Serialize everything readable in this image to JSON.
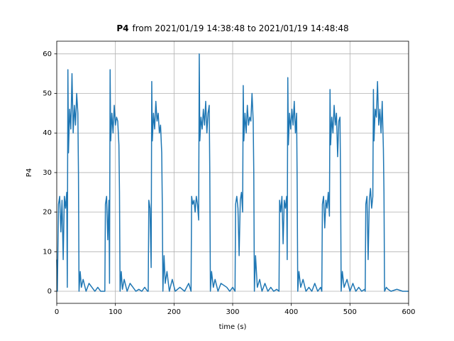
{
  "chart_data": {
    "type": "line",
    "title": [
      "P4",
      "from 2021/01/19 14:38:48 to 2021/01/19 14:48:48"
    ],
    "x_label": "time (s)",
    "y_label": "P4",
    "color": "#1f77b4",
    "grid": true,
    "xlim": [
      0,
      600
    ],
    "xticks": [
      0,
      100,
      200,
      300,
      400,
      500,
      600
    ],
    "ylim": [
      -3.05,
      63.2
    ],
    "yticks": [
      0,
      10,
      20,
      30,
      40,
      50,
      60
    ],
    "x": [
      0,
      1,
      3,
      5,
      7,
      9,
      11,
      13,
      15,
      17,
      18,
      19,
      20,
      22,
      24,
      26,
      28,
      30,
      32,
      34,
      36,
      37,
      38,
      40,
      42,
      45,
      50,
      55,
      60,
      65,
      70,
      75,
      80,
      82,
      83,
      85,
      87,
      89,
      90,
      91,
      92,
      94,
      96,
      98,
      100,
      102,
      104,
      106,
      107,
      108,
      110,
      112,
      115,
      120,
      125,
      130,
      135,
      140,
      145,
      150,
      155,
      156,
      157,
      159,
      161,
      162,
      163,
      165,
      167,
      169,
      171,
      173,
      175,
      177,
      179,
      180,
      181,
      183,
      185,
      188,
      192,
      197,
      202,
      210,
      218,
      225,
      229,
      230,
      232,
      234,
      236,
      238,
      240,
      242,
      243,
      244,
      246,
      248,
      250,
      252,
      254,
      256,
      258,
      260,
      261,
      262,
      264,
      267,
      270,
      275,
      280,
      290,
      295,
      300,
      304,
      305,
      307,
      309,
      311,
      313,
      315,
      317,
      318,
      319,
      321,
      323,
      325,
      327,
      329,
      331,
      333,
      335,
      336,
      337,
      339,
      342,
      346,
      350,
      355,
      360,
      365,
      370,
      375,
      379,
      380,
      382,
      384,
      386,
      388,
      390,
      392,
      393,
      394,
      395,
      397,
      399,
      401,
      403,
      405,
      407,
      409,
      410,
      411,
      413,
      416,
      420,
      425,
      430,
      435,
      440,
      445,
      450,
      452,
      453,
      455,
      457,
      459,
      461,
      463,
      465,
      466,
      467,
      469,
      471,
      473,
      475,
      477,
      479,
      481,
      483,
      484,
      485,
      487,
      490,
      495,
      500,
      505,
      510,
      515,
      520,
      525,
      526,
      527,
      529,
      531,
      533,
      535,
      537,
      539,
      540,
      541,
      543,
      545,
      547,
      549,
      551,
      553,
      555,
      557,
      558,
      559,
      562,
      565,
      570,
      580,
      590,
      600
    ],
    "values": [
      8,
      0,
      22,
      24,
      15,
      23,
      8,
      24,
      21,
      25,
      1,
      56,
      35,
      46,
      41,
      55,
      40,
      47,
      42,
      50,
      45,
      30,
      0,
      5,
      1,
      3,
      0,
      2,
      1,
      0,
      1,
      0,
      0,
      0,
      22,
      24,
      13,
      23,
      2,
      56,
      38,
      45,
      40,
      47,
      42,
      44,
      43,
      37,
      25,
      0,
      5,
      0.5,
      3,
      0,
      2,
      1,
      0,
      0.5,
      0,
      1,
      0,
      0,
      23,
      21,
      6,
      53,
      38,
      45,
      41,
      48,
      43,
      45,
      40,
      42,
      35,
      22,
      0,
      9,
      2,
      5,
      0,
      3,
      0,
      1,
      0,
      2,
      0,
      24,
      22,
      23,
      20,
      24,
      22,
      18,
      60,
      38,
      44,
      41,
      46,
      42,
      48,
      40,
      45,
      47,
      30,
      0,
      5,
      1,
      3,
      0,
      2,
      1,
      0,
      1,
      0,
      22,
      24,
      21,
      9,
      23,
      25,
      20,
      52,
      38,
      45,
      40,
      47,
      42,
      44,
      43,
      50,
      43,
      30,
      0,
      9,
      1,
      3,
      0,
      2,
      0,
      1,
      0,
      0.5,
      0,
      23,
      20,
      24,
      12,
      23,
      21,
      24,
      8,
      54,
      37,
      45,
      41,
      46,
      42,
      48,
      40,
      45,
      27,
      0,
      5,
      1,
      3,
      0,
      1,
      0,
      2,
      0,
      1,
      0,
      22,
      24,
      16,
      23,
      21,
      25,
      19,
      51,
      37,
      44,
      40,
      47,
      42,
      45,
      34,
      43,
      44,
      28,
      0,
      5,
      1,
      3,
      0,
      2,
      0,
      1,
      0,
      0.5,
      0,
      22,
      24,
      8,
      23,
      26,
      21,
      24,
      51,
      38,
      46,
      44,
      53,
      42,
      46,
      40,
      48,
      36,
      25,
      0,
      1,
      0.5,
      0,
      0.5,
      0,
      0
    ]
  }
}
